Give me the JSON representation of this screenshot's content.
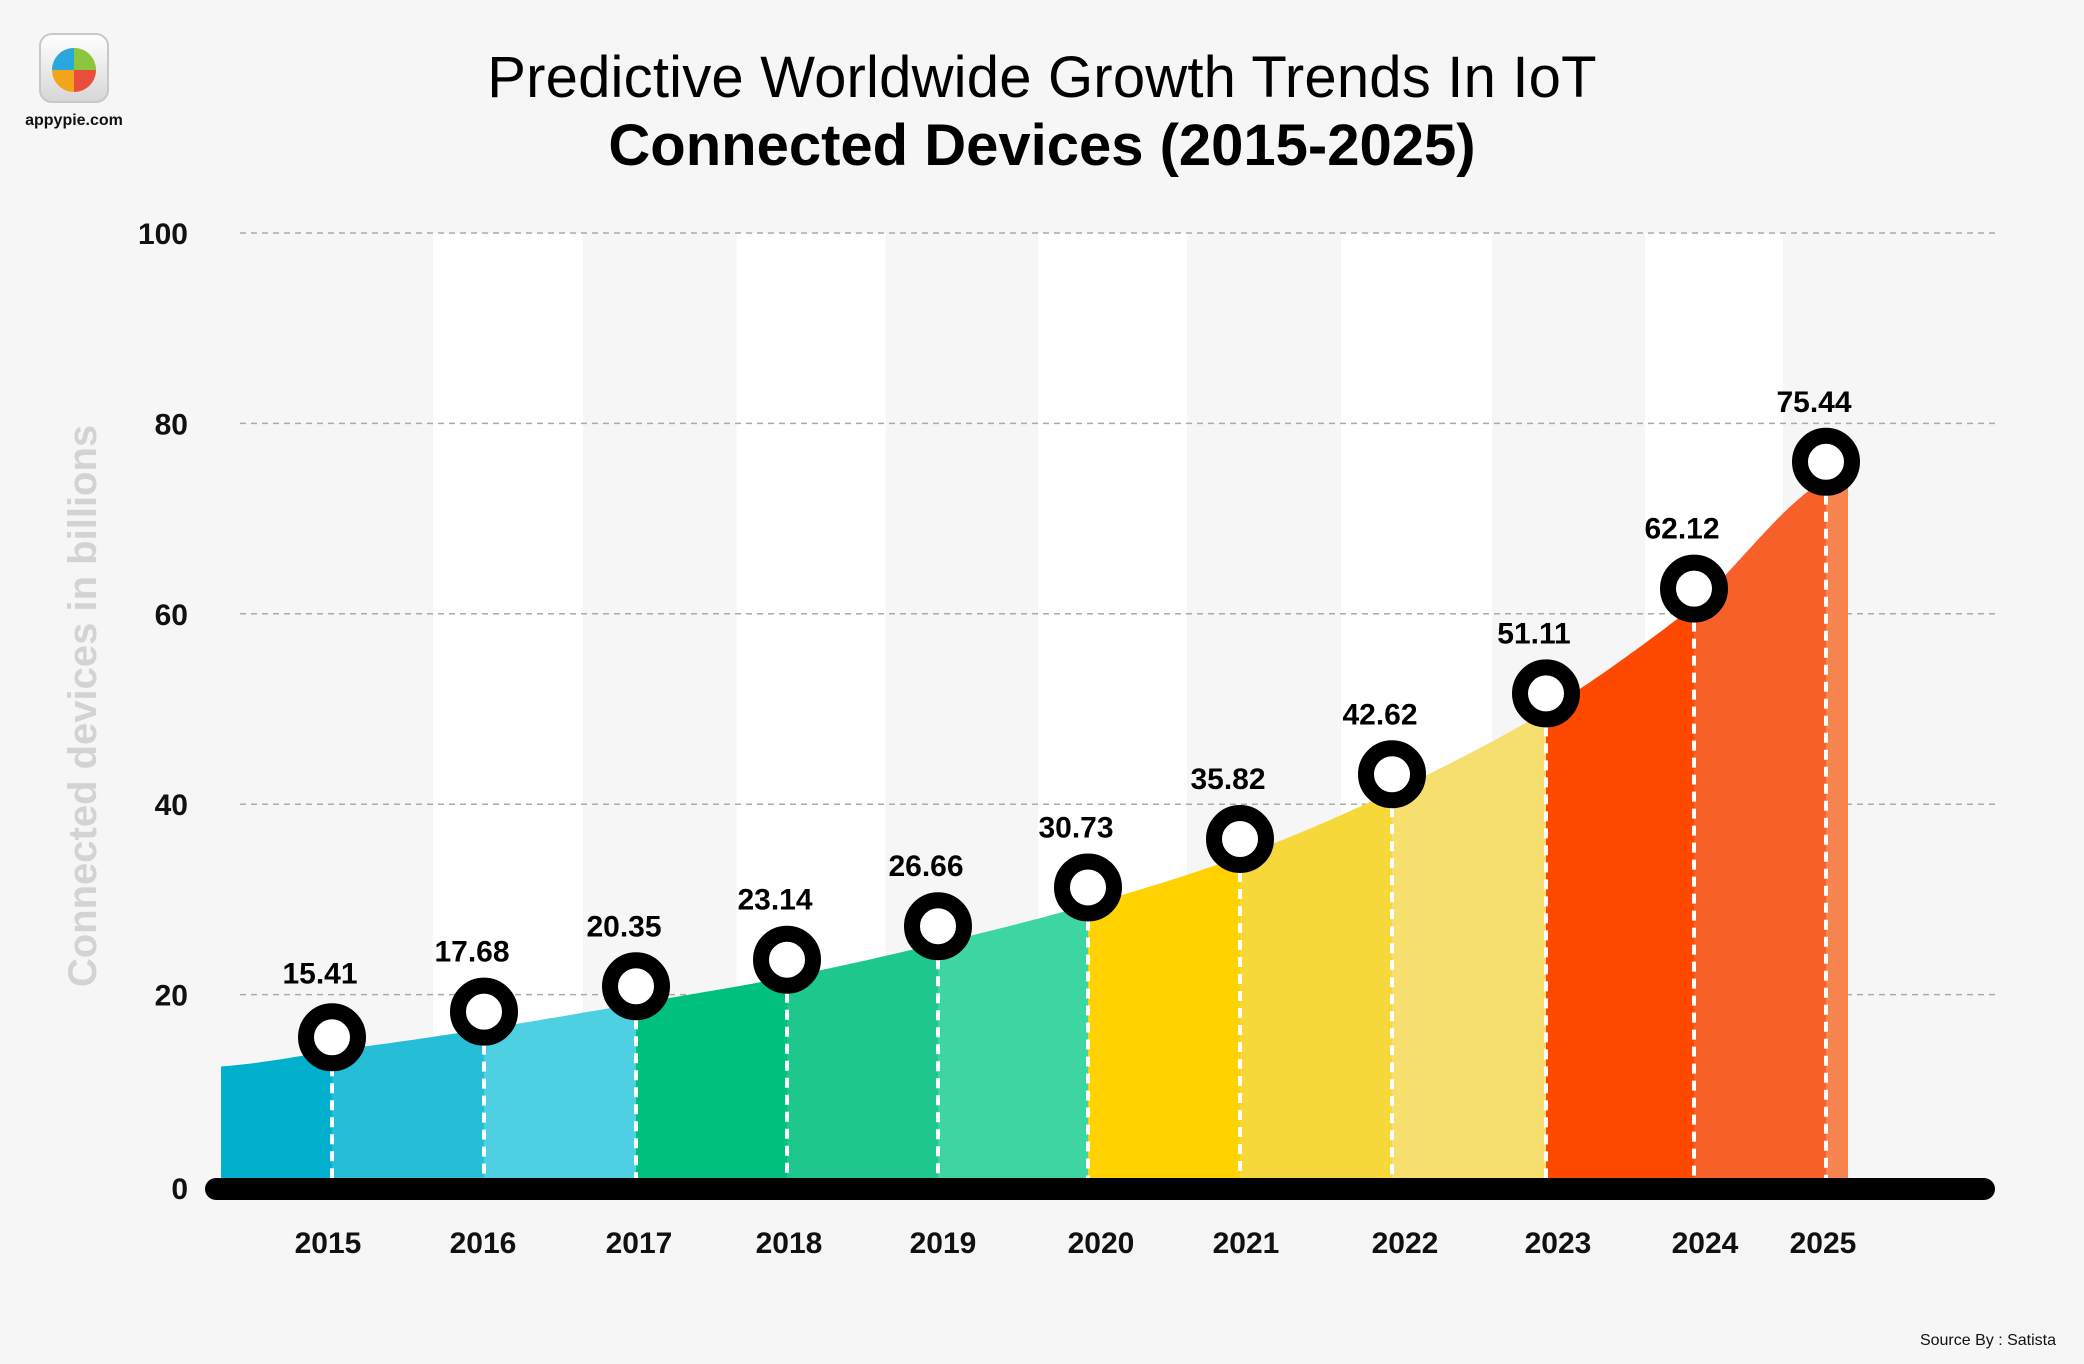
{
  "brand": {
    "site": "appypie.com"
  },
  "title": "Predictive Worldwide Growth Trends In IoT",
  "subtitle": "Connected Devices (2015-2025)",
  "source": "Source By : Satista",
  "chart_data": {
    "type": "area",
    "title": "Predictive Worldwide Growth Trends In IoT",
    "subtitle": "Connected Devices (2015-2025)",
    "xlabel": "",
    "ylabel": "Connected devices in billions",
    "ylim": [
      0,
      100
    ],
    "yticks": [
      0,
      20,
      40,
      60,
      80,
      100
    ],
    "grid": true,
    "categories": [
      "2015",
      "2016",
      "2017",
      "2018",
      "2019",
      "2020",
      "2021",
      "2022",
      "2023",
      "2024",
      "2025"
    ],
    "values": [
      15.41,
      17.68,
      20.35,
      23.14,
      26.66,
      30.73,
      35.82,
      42.62,
      51.11,
      62.12,
      75.44
    ],
    "band_colors": [
      "#00b0cc",
      "#26bdd6",
      "#4cd0e2",
      "#00c07e",
      "#1ec88c",
      "#3dd6a2",
      "#ffd200",
      "#f7d83a",
      "#f6df6e",
      "#ff4800",
      "#f76028"
    ]
  }
}
